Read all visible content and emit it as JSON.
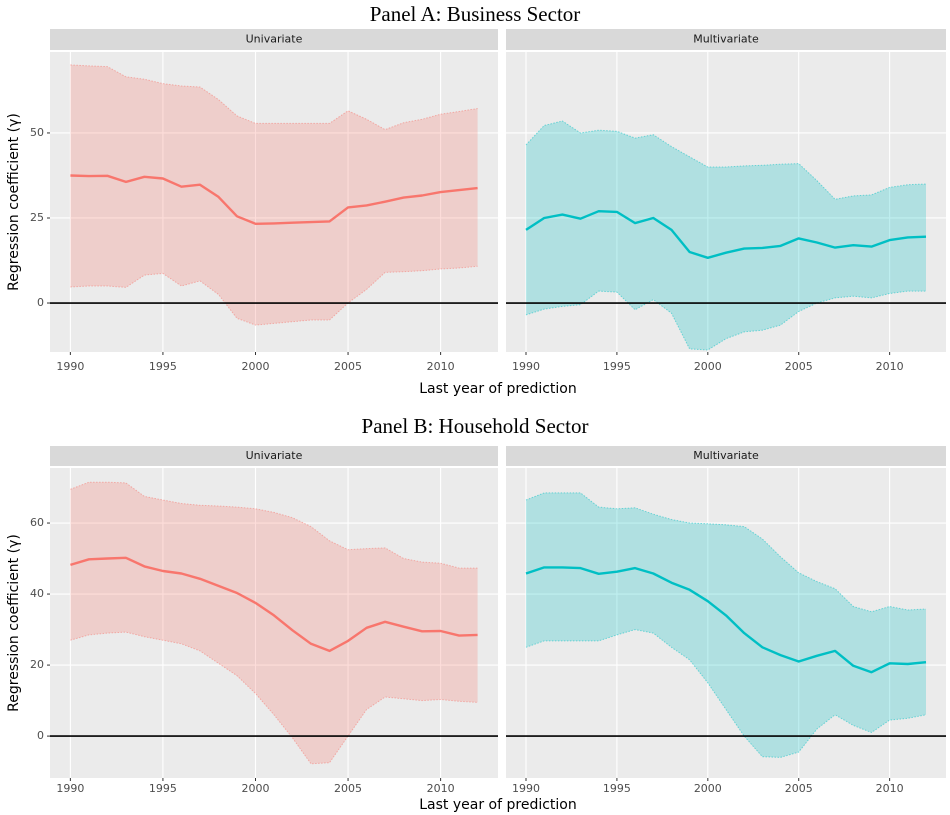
{
  "chart_data": [
    {
      "type": "line",
      "title": "Panel A: Business Sector",
      "x_label": "Last year of prediction",
      "y_label": "Regression coefficient (γ)",
      "x": [
        1990,
        1991,
        1992,
        1993,
        1994,
        1995,
        1996,
        1997,
        1998,
        1999,
        2000,
        2001,
        2002,
        2003,
        2004,
        2005,
        2006,
        2007,
        2008,
        2009,
        2010,
        2011,
        2012
      ],
      "xlim": [
        1988.9,
        2013.1
      ],
      "xticks": [
        1990,
        1995,
        2000,
        2005,
        2010
      ],
      "ylim": [
        -14.4,
        73.8
      ],
      "yticks": [
        0,
        25,
        50
      ],
      "hline": 0,
      "grid": true,
      "series": [
        {
          "name": "Univariate",
          "color": "#F8766D",
          "values": [
            37.5,
            37.3,
            37.4,
            35.6,
            37.1,
            36.6,
            34.2,
            34.8,
            31.2,
            25.5,
            23.3,
            23.4,
            23.6,
            23.8,
            24.0,
            28.1,
            28.7,
            29.8,
            31.0,
            31.6,
            32.6,
            33.2,
            33.8
          ],
          "upper": [
            70.0,
            69.7,
            69.5,
            66.5,
            65.8,
            64.5,
            63.8,
            63.5,
            59.8,
            55.0,
            52.8,
            52.8,
            52.8,
            52.8,
            52.8,
            56.5,
            54.0,
            51.0,
            53.0,
            54.0,
            55.5,
            56.3,
            57.2
          ],
          "lower": [
            4.7,
            5.0,
            5.0,
            4.6,
            8.2,
            8.7,
            5.0,
            6.5,
            2.5,
            -4.5,
            -6.5,
            -6.0,
            -5.5,
            -5.0,
            -5.0,
            0,
            4.0,
            9.0,
            9.2,
            9.5,
            10.0,
            10.3,
            10.8
          ]
        },
        {
          "name": "Multivariate",
          "color": "#00BFC4",
          "values": [
            21.5,
            25.0,
            26.0,
            24.8,
            27.0,
            26.8,
            23.5,
            25.0,
            21.5,
            15.0,
            13.3,
            14.8,
            16.0,
            16.2,
            16.8,
            19.0,
            17.8,
            16.3,
            17.0,
            16.6,
            18.5,
            19.3,
            19.5
          ],
          "upper": [
            46.5,
            52.2,
            53.5,
            50.0,
            50.8,
            50.5,
            48.5,
            49.5,
            46.0,
            43.0,
            40.0,
            40.0,
            40.3,
            40.5,
            40.8,
            41.0,
            36.0,
            30.5,
            31.5,
            31.8,
            34.0,
            34.8,
            35.0
          ],
          "lower": [
            -3.5,
            -1.8,
            -1.0,
            -0.5,
            3.5,
            3.2,
            -2.0,
            1.0,
            -3.0,
            -13.5,
            -13.8,
            -10.5,
            -8.5,
            -8.0,
            -6.5,
            -2.5,
            0,
            1.5,
            2.0,
            1.5,
            2.8,
            3.5,
            3.5
          ]
        }
      ]
    },
    {
      "type": "line",
      "title": "Panel B: Household Sector",
      "x_label": "Last year of prediction",
      "y_label": "Regression coefficient (γ)",
      "x": [
        1990,
        1991,
        1992,
        1993,
        1994,
        1995,
        1996,
        1997,
        1998,
        1999,
        2000,
        2001,
        2002,
        2003,
        2004,
        2005,
        2006,
        2007,
        2008,
        2009,
        2010,
        2011,
        2012
      ],
      "xlim": [
        1988.9,
        2013.1
      ],
      "xticks": [
        1990,
        1995,
        2000,
        2005,
        2010
      ],
      "ylim": [
        -11.8,
        75.5
      ],
      "yticks": [
        0,
        20,
        40,
        60
      ],
      "hline": 0,
      "grid": true,
      "series": [
        {
          "name": "Univariate",
          "color": "#F8766D",
          "values": [
            48.2,
            49.8,
            50.0,
            50.2,
            47.8,
            46.5,
            45.8,
            44.3,
            42.3,
            40.3,
            37.5,
            34.0,
            29.8,
            26.0,
            24.0,
            26.8,
            30.5,
            32.2,
            30.8,
            29.5,
            29.6,
            28.3,
            28.5
          ],
          "upper": [
            69.5,
            71.5,
            71.5,
            71.3,
            67.5,
            66.5,
            65.5,
            65.0,
            64.8,
            64.5,
            64.0,
            63.0,
            61.5,
            59.0,
            55.0,
            52.5,
            52.8,
            53.0,
            50.0,
            49.0,
            48.7,
            47.3,
            47.3
          ],
          "lower": [
            27.0,
            28.5,
            29.0,
            29.3,
            28.0,
            27.0,
            26.0,
            24.0,
            20.5,
            17.0,
            12.0,
            6.0,
            -0.5,
            -7.8,
            -7.5,
            0,
            7.5,
            11.0,
            10.5,
            10.0,
            10.3,
            9.8,
            9.5
          ]
        },
        {
          "name": "Multivariate",
          "color": "#00BFC4",
          "values": [
            45.8,
            47.5,
            47.5,
            47.3,
            45.7,
            46.3,
            47.3,
            45.8,
            43.2,
            41.2,
            38.0,
            34.0,
            29.0,
            25.0,
            22.8,
            21.0,
            22.6,
            24.0,
            19.8,
            18.0,
            20.5,
            20.3,
            20.8
          ],
          "upper": [
            66.5,
            68.5,
            68.5,
            68.5,
            64.5,
            64.0,
            64.3,
            62.5,
            61.0,
            60.0,
            59.8,
            59.5,
            59.0,
            55.5,
            50.5,
            46.0,
            43.5,
            41.5,
            36.5,
            35.0,
            36.5,
            35.5,
            35.8
          ],
          "lower": [
            25.0,
            26.8,
            26.8,
            26.8,
            26.8,
            28.5,
            30.0,
            29.0,
            25.0,
            21.5,
            15.0,
            7.5,
            0,
            -5.8,
            -6.0,
            -4.5,
            2.0,
            6.0,
            3.0,
            1.0,
            4.5,
            5.0,
            6.0
          ]
        }
      ]
    }
  ]
}
